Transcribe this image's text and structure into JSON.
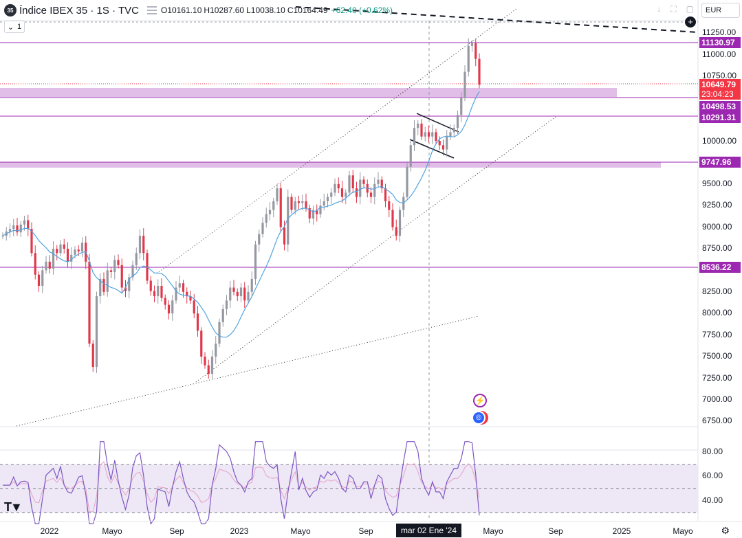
{
  "header": {
    "symbol_badge": "35",
    "title": "Índice IBEX 35 · 1S · TVC",
    "ohlc": [
      {
        "label": "O",
        "value": "10161.10"
      },
      {
        "label": "H",
        "value": "10287.60"
      },
      {
        "label": "L",
        "value": "10038.10"
      },
      {
        "label": "C",
        "value": "10164.49"
      }
    ],
    "change": "+62.40 (+0.62%)",
    "currency": "EUR",
    "collapse_count": "1"
  },
  "price_axis": {
    "ticks": [
      "11250.00",
      "11000.00",
      "10750.00",
      "10000.00",
      "9500.00",
      "9250.00",
      "9000.00",
      "8750.00",
      "8250.00",
      "8000.00",
      "7750.00",
      "7500.00",
      "7250.00",
      "7000.00",
      "6750.00"
    ],
    "labels": [
      {
        "text": "11130.97",
        "kind": "level"
      },
      {
        "text": "10649.79",
        "kind": "last"
      },
      {
        "text": "23:04:23",
        "kind": "countdown"
      },
      {
        "text": "10498.53",
        "kind": "level"
      },
      {
        "text": "10291.31",
        "kind": "level"
      },
      {
        "text": "9747.96",
        "kind": "level"
      },
      {
        "text": "8536.22",
        "kind": "level"
      }
    ]
  },
  "rsi_axis": {
    "ticks": [
      "80.00",
      "60.00",
      "40.00"
    ]
  },
  "time_axis": {
    "ticks": [
      "2022",
      "Mayo",
      "Sep",
      "2023",
      "Mayo",
      "Sep",
      "Mayo",
      "Sep",
      "2025",
      "Mayo"
    ],
    "cursor_label": "mar 02 Ene '24"
  },
  "colors": {
    "up": "#9598a1",
    "down": "#e0384b",
    "level": "#9c27b0",
    "zone": "#e1bee7",
    "ma": "#4fa3e0",
    "rsi": "#7e57c2",
    "rsi_ma": "#e7a3c8",
    "rsi_band": "#ede7f6"
  },
  "icons": [
    "tradingview-logo-icon",
    "settings-gear-icon",
    "add-plus-icon",
    "lightning-event-icon",
    "earnings-event-icon"
  ]
}
